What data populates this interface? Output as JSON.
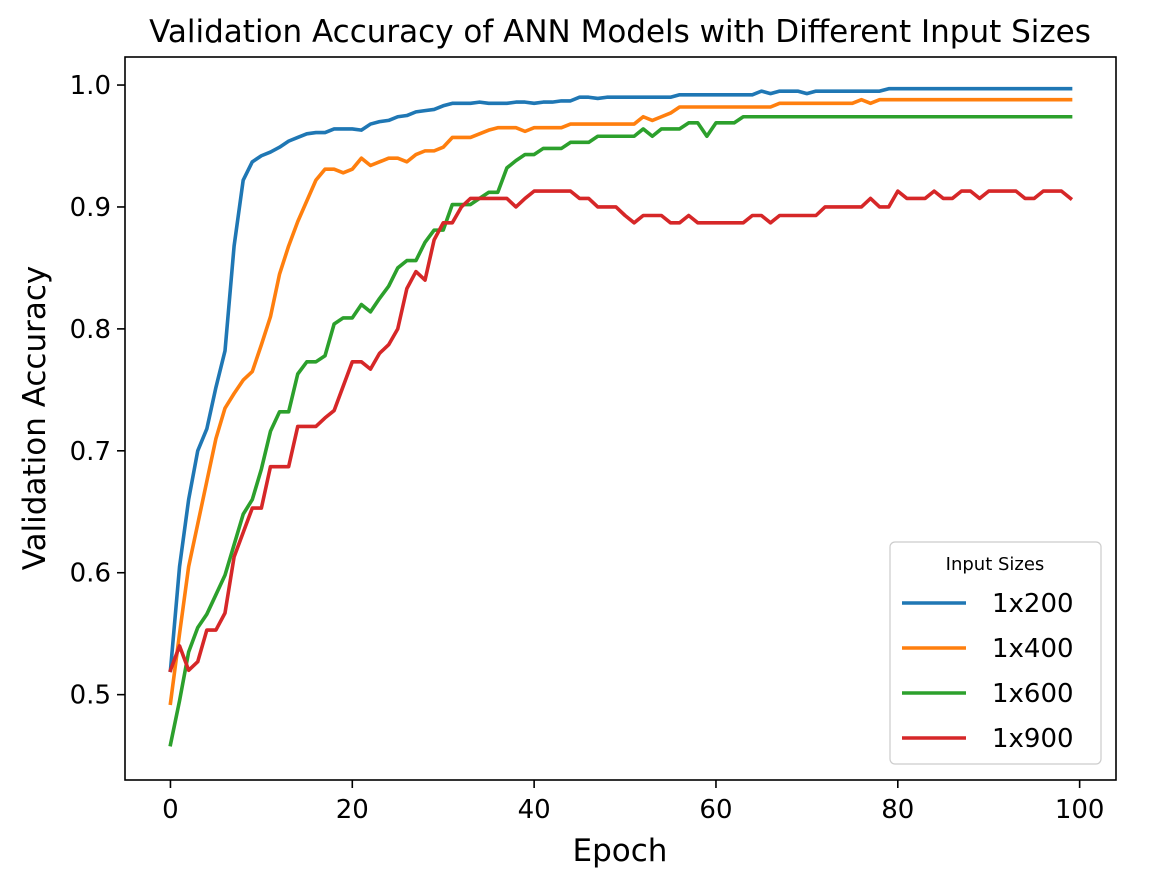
{
  "chart_data": {
    "type": "line",
    "title": "Validation Accuracy of ANN Models with Different Input Sizes",
    "xlabel": "Epoch",
    "ylabel": "Validation Accuracy",
    "xlim": [
      -5,
      104
    ],
    "ylim": [
      0.43,
      1.023
    ],
    "xticks": [
      0,
      20,
      40,
      60,
      80,
      100
    ],
    "yticks": [
      0.5,
      0.6,
      0.7,
      0.8,
      0.9,
      1.0
    ],
    "xtick_labels": [
      "0",
      "20",
      "40",
      "60",
      "80",
      "100"
    ],
    "ytick_labels": [
      "0.5",
      "0.6",
      "0.7",
      "0.8",
      "0.9",
      "1.0"
    ],
    "grid": false,
    "legend": {
      "title": "Input Sizes",
      "placement": "lower-right"
    },
    "x": [
      0,
      1,
      2,
      3,
      4,
      5,
      6,
      7,
      8,
      9,
      10,
      11,
      12,
      13,
      14,
      15,
      16,
      17,
      18,
      19,
      20,
      21,
      22,
      23,
      24,
      25,
      26,
      27,
      28,
      29,
      30,
      31,
      32,
      33,
      34,
      35,
      36,
      37,
      38,
      39,
      40,
      41,
      42,
      43,
      44,
      45,
      46,
      47,
      48,
      49,
      50,
      51,
      52,
      53,
      54,
      55,
      56,
      57,
      58,
      59,
      60,
      61,
      62,
      63,
      64,
      65,
      66,
      67,
      68,
      69,
      70,
      71,
      72,
      73,
      74,
      75,
      76,
      77,
      78,
      79,
      80,
      81,
      82,
      83,
      84,
      85,
      86,
      87,
      88,
      89,
      90,
      91,
      92,
      93,
      94,
      95,
      96,
      97,
      98,
      99
    ],
    "series": [
      {
        "name": "1x200",
        "color": "#1f77b4",
        "values": [
          0.52,
          0.605,
          0.66,
          0.7,
          0.718,
          0.752,
          0.782,
          0.868,
          0.922,
          0.937,
          0.942,
          0.945,
          0.949,
          0.954,
          0.957,
          0.96,
          0.961,
          0.961,
          0.964,
          0.964,
          0.964,
          0.963,
          0.968,
          0.97,
          0.971,
          0.974,
          0.975,
          0.978,
          0.979,
          0.98,
          0.983,
          0.985,
          0.985,
          0.985,
          0.986,
          0.985,
          0.985,
          0.985,
          0.986,
          0.986,
          0.985,
          0.986,
          0.986,
          0.987,
          0.987,
          0.99,
          0.99,
          0.989,
          0.99,
          0.99,
          0.99,
          0.99,
          0.99,
          0.99,
          0.99,
          0.99,
          0.992,
          0.992,
          0.992,
          0.992,
          0.992,
          0.992,
          0.992,
          0.992,
          0.992,
          0.995,
          0.993,
          0.995,
          0.995,
          0.995,
          0.993,
          0.995,
          0.995,
          0.995,
          0.995,
          0.995,
          0.995,
          0.995,
          0.995,
          0.997,
          0.997,
          0.997,
          0.997,
          0.997,
          0.997,
          0.997,
          0.997,
          0.997,
          0.997,
          0.997,
          0.997,
          0.997,
          0.997,
          0.997,
          0.997,
          0.997,
          0.997,
          0.997,
          0.997,
          0.997
        ]
      },
      {
        "name": "1x400",
        "color": "#ff7f0e",
        "values": [
          0.493,
          0.55,
          0.605,
          0.64,
          0.675,
          0.71,
          0.735,
          0.747,
          0.758,
          0.765,
          0.787,
          0.81,
          0.845,
          0.868,
          0.888,
          0.905,
          0.922,
          0.931,
          0.931,
          0.928,
          0.931,
          0.94,
          0.934,
          0.937,
          0.94,
          0.94,
          0.937,
          0.943,
          0.946,
          0.946,
          0.949,
          0.957,
          0.957,
          0.957,
          0.96,
          0.963,
          0.965,
          0.965,
          0.965,
          0.962,
          0.965,
          0.965,
          0.965,
          0.965,
          0.968,
          0.968,
          0.968,
          0.968,
          0.968,
          0.968,
          0.968,
          0.968,
          0.974,
          0.971,
          0.974,
          0.977,
          0.982,
          0.982,
          0.982,
          0.982,
          0.982,
          0.982,
          0.982,
          0.982,
          0.982,
          0.982,
          0.982,
          0.985,
          0.985,
          0.985,
          0.985,
          0.985,
          0.985,
          0.985,
          0.985,
          0.985,
          0.988,
          0.985,
          0.988,
          0.988,
          0.988,
          0.988,
          0.988,
          0.988,
          0.988,
          0.988,
          0.988,
          0.988,
          0.988,
          0.988,
          0.988,
          0.988,
          0.988,
          0.988,
          0.988,
          0.988,
          0.988,
          0.988,
          0.988,
          0.988
        ]
      },
      {
        "name": "1x600",
        "color": "#2ca02c",
        "values": [
          0.459,
          0.495,
          0.535,
          0.555,
          0.566,
          0.582,
          0.598,
          0.623,
          0.648,
          0.66,
          0.685,
          0.716,
          0.732,
          0.732,
          0.763,
          0.773,
          0.773,
          0.778,
          0.804,
          0.809,
          0.809,
          0.82,
          0.814,
          0.825,
          0.835,
          0.85,
          0.856,
          0.856,
          0.871,
          0.881,
          0.881,
          0.902,
          0.902,
          0.902,
          0.907,
          0.912,
          0.912,
          0.932,
          0.938,
          0.943,
          0.943,
          0.948,
          0.948,
          0.948,
          0.953,
          0.953,
          0.953,
          0.958,
          0.958,
          0.958,
          0.958,
          0.958,
          0.964,
          0.958,
          0.964,
          0.964,
          0.964,
          0.969,
          0.969,
          0.958,
          0.969,
          0.969,
          0.969,
          0.974,
          0.974,
          0.974,
          0.974,
          0.974,
          0.974,
          0.974,
          0.974,
          0.974,
          0.974,
          0.974,
          0.974,
          0.974,
          0.974,
          0.974,
          0.974,
          0.974,
          0.974,
          0.974,
          0.974,
          0.974,
          0.974,
          0.974,
          0.974,
          0.974,
          0.974,
          0.974,
          0.974,
          0.974,
          0.974,
          0.974,
          0.974,
          0.974,
          0.974,
          0.974,
          0.974,
          0.974
        ]
      },
      {
        "name": "1x900",
        "color": "#d62728",
        "values": [
          0.52,
          0.54,
          0.52,
          0.527,
          0.553,
          0.553,
          0.567,
          0.613,
          0.633,
          0.653,
          0.653,
          0.687,
          0.687,
          0.687,
          0.72,
          0.72,
          0.72,
          0.727,
          0.733,
          0.753,
          0.773,
          0.773,
          0.767,
          0.78,
          0.787,
          0.8,
          0.833,
          0.847,
          0.84,
          0.873,
          0.887,
          0.887,
          0.9,
          0.907,
          0.907,
          0.907,
          0.907,
          0.907,
          0.9,
          0.907,
          0.913,
          0.913,
          0.913,
          0.913,
          0.913,
          0.907,
          0.907,
          0.9,
          0.9,
          0.9,
          0.893,
          0.887,
          0.893,
          0.893,
          0.893,
          0.887,
          0.887,
          0.893,
          0.887,
          0.887,
          0.887,
          0.887,
          0.887,
          0.887,
          0.893,
          0.893,
          0.887,
          0.893,
          0.893,
          0.893,
          0.893,
          0.893,
          0.9,
          0.9,
          0.9,
          0.9,
          0.9,
          0.907,
          0.9,
          0.9,
          0.913,
          0.907,
          0.907,
          0.907,
          0.913,
          0.907,
          0.907,
          0.913,
          0.913,
          0.907,
          0.913,
          0.913,
          0.913,
          0.913,
          0.907,
          0.907,
          0.913,
          0.913,
          0.913,
          0.907
        ]
      }
    ]
  }
}
